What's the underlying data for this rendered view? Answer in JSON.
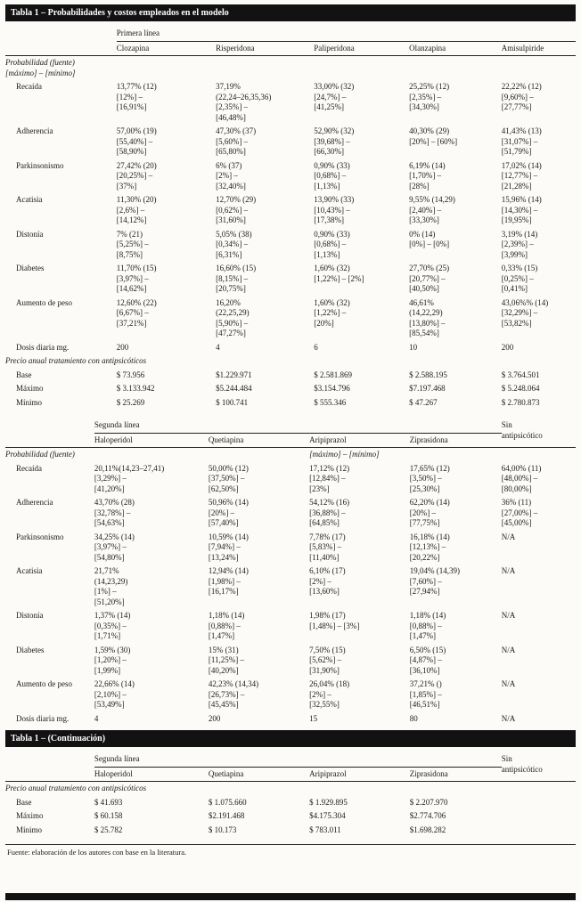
{
  "page": {
    "title_bar": "Tabla 1 – Probabilidades y costos empleados en el modelo",
    "continuation_bar": "Tabla 1 – (Continuación)",
    "footer_note": "Fuente: elaboración de los autores con base en la literatura.",
    "colors": {
      "bar_bg": "#121212",
      "bar_text": "#ffffff",
      "paper_bg": "#fcfbf7",
      "rule": "#222222"
    }
  },
  "primera": {
    "section_label": "Primera línea",
    "columns": [
      "Clozapina",
      "Risperidona",
      "Paliperidona",
      "Olanzapina",
      "Amisulpiride"
    ],
    "rows": [
      {
        "t": "sub",
        "label": "Probabilidad (fuente)\n[máximo] – [mínimo]"
      },
      {
        "t": "row",
        "ind": true,
        "label": "Recaída",
        "cells": [
          "13,77% (12)\n[12%] –\n[16,91%]",
          "37,19%\n(22,24–26,35,36)\n[2,35%] –\n[46,48%]",
          "33,00% (32)\n[24,7%] –\n[41,25%]",
          "25,25% (12)\n[2,35%] –\n[34,30%]",
          "22,22% (12)\n[9,60%] –\n[27,77%]"
        ]
      },
      {
        "t": "row",
        "ind": true,
        "label": "Adherencia",
        "cells": [
          "57,00% (19)\n[55,40%] –\n[58,90%]",
          "47,30% (37)\n[5,60%] –\n[65,80%]",
          "52,90% (32)\n[39,68%] –\n[66,30%]",
          "40,30% (29)\n[20%] – [60%]",
          "41,43% (13)\n[31,07%] –\n[51,79%]"
        ]
      },
      {
        "t": "row",
        "ind": true,
        "label": "Parkinsonismo",
        "cells": [
          "27,42% (20)\n[20,25%] –\n[37%]",
          "6% (37)\n[2%] –\n[32,40%]",
          "0,90% (33)\n[0,68%] –\n[1,13%]",
          "6,19% (14)\n[1,70%] –\n[28%]",
          "17,02% (14)\n[12,77%] –\n[21,28%]"
        ]
      },
      {
        "t": "row",
        "ind": true,
        "label": "Acatisia",
        "cells": [
          "11,30% (20)\n[2,6%] –\n[14,12%]",
          "12,70% (29)\n[0,62%] –\n[31,60%]",
          "13,90% (33)\n[10,43%] –\n[17,38%]",
          "9,55% (14,29)\n[2,40%] –\n[33,30%]",
          "15,96% (14)\n[14,30%] –\n[19,95%]"
        ]
      },
      {
        "t": "row",
        "ind": true,
        "label": "Distonía",
        "cells": [
          "7% (21)\n[5,25%] –\n[8,75%]",
          "5,05% (38)\n[0,34%] –\n[6,31%]",
          "0,90% (33)\n[0,68%] –\n[1,13%]",
          "0% (14)\n[0%] – [0%]",
          "3,19% (14)\n[2,39%] –\n[3,99%]"
        ]
      },
      {
        "t": "row",
        "ind": true,
        "label": "Diabetes",
        "cells": [
          "11,70% (15)\n[3,97%] –\n[14,62%]",
          "16,60% (15)\n[8,15%] –\n[20,75%]",
          "1,60% (32)\n[1,22%] – [2%]",
          "27,70% (25)\n[20,77%] –\n[40,50%]",
          "0,33% (15)\n[0,25%] –\n[0,41%]"
        ]
      },
      {
        "t": "row",
        "ind": true,
        "label": "Aumento de peso",
        "cells": [
          "12,60% (22)\n[6,67%] –\n[37,21%]",
          "16,20%\n(22,25,29)\n[5,90%] –\n[47,27%]",
          "1,60% (32)\n[1,22%] –\n[20%]",
          "46,61%\n(14,22,29)\n[13,80%] –\n[85,54%]",
          "43,06%% (14)\n[32,29%] –\n[53,82%]"
        ]
      },
      {
        "t": "row",
        "ind": true,
        "label": "Dosis diaria mg.",
        "cells": [
          "200",
          "4",
          "6",
          "10",
          "200"
        ]
      },
      {
        "t": "sub",
        "label": "Precio anual tratamiento con antipsicóticos"
      },
      {
        "t": "row",
        "ind": true,
        "label": "Base",
        "cells": [
          "$ 73.956",
          "$1.229.971",
          "$ 2.581.869",
          "$ 2.588.195",
          "$ 3.764.501"
        ]
      },
      {
        "t": "row",
        "ind": true,
        "label": "Máximo",
        "cells": [
          "$ 3.133.942",
          "$5.244.484",
          "$3.154.796",
          "$7.197.468",
          "$ 5.248.064"
        ]
      },
      {
        "t": "row",
        "ind": true,
        "label": "Mínimo",
        "cells": [
          "$ 25.269",
          "$ 100.741",
          "$ 555.346",
          "$ 47.267",
          "$ 2.780.873"
        ]
      }
    ]
  },
  "segunda": {
    "section_label": "Segunda línea",
    "sin_label": "Sin\nantipsicótico",
    "columns": [
      "Haloperidol",
      "Quetiapina",
      "Aripiprazol",
      "Ziprasidona"
    ],
    "rows": [
      {
        "t": "row",
        "ind": false,
        "it": true,
        "label": "Probabilidad (fuente)",
        "cells": [
          "",
          "",
          "[máximo] – [mínimo]",
          "",
          ""
        ]
      },
      {
        "t": "row",
        "ind": true,
        "label": "Recaída",
        "cells": [
          "20,11%(14,23–27,41)\n[3,29%] –\n[41,20%]",
          "50,00% (12)\n[37,50%] –\n[62,50%]",
          "17,12% (12)\n[12,84%] –\n[23%]",
          "17,65% (12)\n[3,50%] –\n[25,30%]",
          "64,00% (11)\n[48,00%] –\n[80,00%]"
        ]
      },
      {
        "t": "row",
        "ind": true,
        "label": "Adherencia",
        "cells": [
          "43,70% (28)\n[32,78%] –\n[54,63%]",
          "50,96% (14)\n[20%] –\n[57,40%]",
          "54,12% (16)\n[36,88%] –\n[64,85%]",
          "62,20% (14)\n[20%] –\n[77,75%]",
          "36% (11)\n[27,00%] –\n[45,00%]"
        ]
      },
      {
        "t": "row",
        "ind": true,
        "label": "Parkinsonismo",
        "cells": [
          "34,25% (14)\n[3,97%] –\n[54,80%]",
          "10,59% (14)\n[7,94%] –\n[13,24%]",
          "7,78% (17)\n[5,83%] –\n[11,40%]",
          "16,18% (14)\n[12,13%] –\n[20,22%]",
          "N/A"
        ]
      },
      {
        "t": "row",
        "ind": true,
        "label": "Acatisia",
        "cells": [
          "21,71%\n(14,23,29)\n[1%] –\n[51,20%]",
          "12,94% (14)\n[1,98%] –\n[16,17%]",
          "6,10% (17)\n[2%] –\n[13,60%]",
          "19,04% (14,39)\n[7,60%] –\n[27,94%]",
          "N/A"
        ]
      },
      {
        "t": "row",
        "ind": true,
        "label": "Distonía",
        "cells": [
          "1,37% (14)\n[0,35%] –\n[1,71%]",
          "1,18% (14)\n[0,88%] –\n[1,47%]",
          "1,98% (17)\n[1,48%] – [3%]",
          "1,18% (14)\n[0,88%] –\n[1,47%]",
          "N/A"
        ]
      },
      {
        "t": "row",
        "ind": true,
        "label": "Diabetes",
        "cells": [
          "1,59% (30)\n[1,20%] –\n[1,99%]",
          "15% (31)\n[11,25%] –\n[40,20%]",
          "7,50% (15)\n[5,62%] –\n[31,90%]",
          "6,50% (15)\n[4,87%] –\n[36,10%]",
          "N/A"
        ]
      },
      {
        "t": "row",
        "ind": true,
        "label": "Aumento de peso",
        "cells": [
          "22,66% (14)\n[2,10%] –\n[53,49%]",
          "42,23% (14,34)\n[26,73%] –\n[45,45%]",
          "26,04% (18)\n[2%] –\n[32,55%]",
          "37,21% ()\n[1,85%] –\n[46,51%]",
          "N/A"
        ]
      },
      {
        "t": "row",
        "ind": true,
        "label": "Dosis diaria mg.",
        "cells": [
          "4",
          "200",
          "15",
          "80",
          "N/A"
        ]
      }
    ]
  },
  "cont": {
    "section_label": "Segunda línea",
    "sin_label": "Sin\nantipsicótico",
    "columns": [
      "Haloperidol",
      "Quetiapina",
      "Aripiprazol",
      "Ziprasidona"
    ],
    "rows": [
      {
        "t": "sub",
        "label": "Precio anual tratamiento con antipsicóticos"
      },
      {
        "t": "row",
        "ind": true,
        "label": "Base",
        "cells": [
          "$ 41.693",
          "$ 1.075.660",
          "$ 1.929.895",
          "$ 2.207.970",
          ""
        ]
      },
      {
        "t": "row",
        "ind": true,
        "label": "Máximo",
        "cells": [
          "$ 60.158",
          "$2.191.468",
          "$4.175.304",
          "$2.774.706",
          ""
        ]
      },
      {
        "t": "row",
        "ind": true,
        "label": "Mínimo",
        "cells": [
          "$ 25.782",
          "$ 10.173",
          "$ 783.011",
          "$1.698.282",
          ""
        ]
      }
    ]
  }
}
